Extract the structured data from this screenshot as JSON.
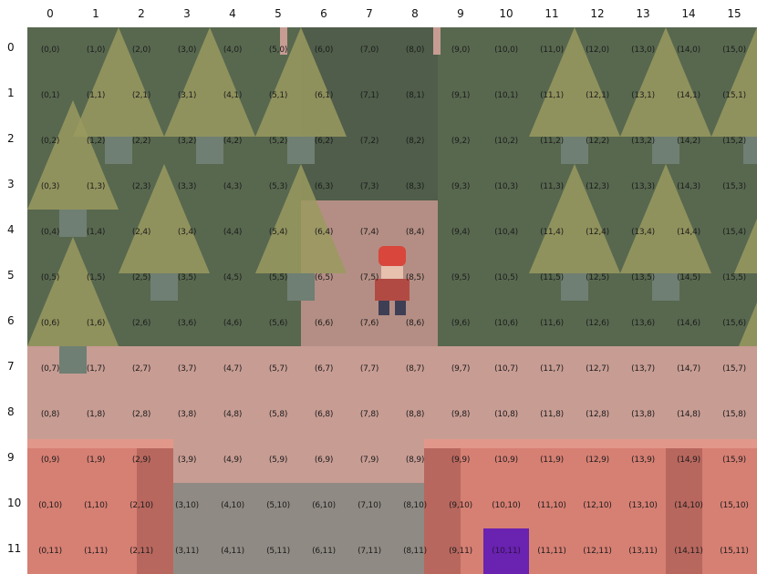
{
  "grid": {
    "cols": 16,
    "rows": 12,
    "column_labels": [
      "0",
      "1",
      "2",
      "3",
      "4",
      "5",
      "6",
      "7",
      "8",
      "9",
      "10",
      "11",
      "12",
      "13",
      "14",
      "15"
    ],
    "row_labels": [
      "0",
      "1",
      "2",
      "3",
      "4",
      "5",
      "6",
      "7",
      "8",
      "9",
      "10",
      "11"
    ],
    "highlighted_cell": {
      "col": 10,
      "row": 11
    }
  },
  "colors": {
    "highlight": "#6a22b0",
    "forest_dark": "#58684f",
    "tree_foliage": "#9a9a5f",
    "tree_shade": "#6f7e58",
    "trunk": "#6f7f73",
    "path": "#b48e84",
    "ground": "#c79c93",
    "roof": "#d67f73",
    "roof_dark": "#b8675e",
    "hedge": "#8f8a83"
  },
  "map": {
    "player_icon": "player-character-sprite",
    "tree_icon": "pine-tree",
    "roof_icon": "red-roof-building"
  }
}
